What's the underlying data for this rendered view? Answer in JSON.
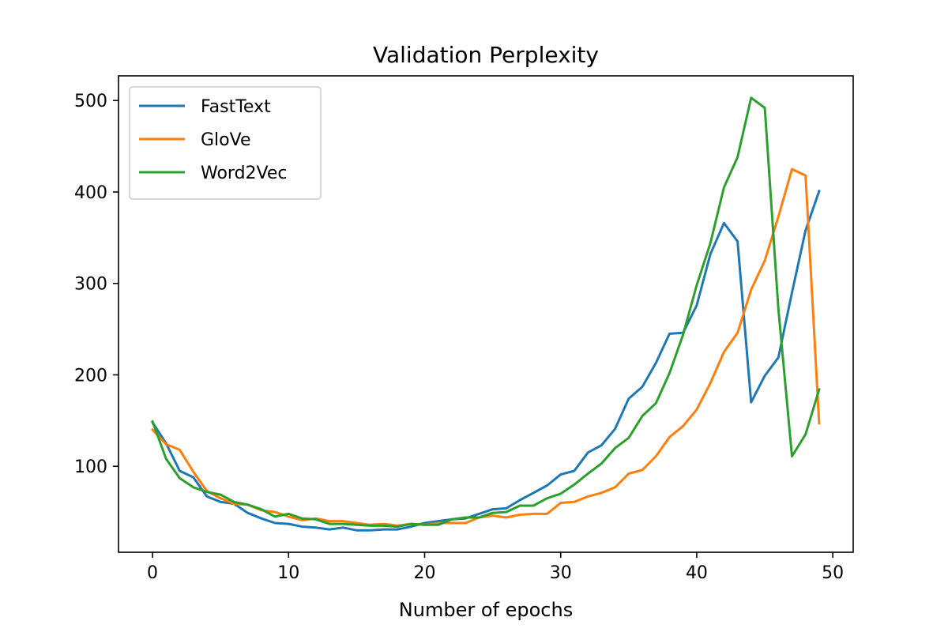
{
  "chart_data": {
    "type": "line",
    "title": "Validation Perplexity",
    "xlabel": "Number of epochs",
    "ylabel": "",
    "xlim": [
      -2.5,
      51.5
    ],
    "ylim": [
      6,
      527
    ],
    "xticks": [
      0,
      10,
      20,
      30,
      40,
      50
    ],
    "yticks": [
      100,
      200,
      300,
      400,
      500
    ],
    "grid": false,
    "legend_position": "top-left",
    "x": [
      0,
      1,
      2,
      3,
      4,
      5,
      6,
      7,
      8,
      9,
      10,
      11,
      12,
      13,
      14,
      15,
      16,
      17,
      18,
      19,
      20,
      21,
      22,
      23,
      24,
      25,
      26,
      27,
      28,
      29,
      30,
      31,
      32,
      33,
      34,
      35,
      36,
      37,
      38,
      39,
      40,
      41,
      42,
      43,
      44,
      45,
      46,
      47,
      48,
      49
    ],
    "series": [
      {
        "name": "FastText",
        "color": "#1f77b4",
        "values": [
          148,
          125,
          95,
          88,
          67,
          61,
          59,
          49,
          43,
          38,
          37,
          34,
          33,
          31,
          33,
          30,
          30,
          31,
          31,
          34,
          38,
          40,
          42,
          43,
          48,
          53,
          54,
          63,
          71,
          79,
          91,
          95,
          115,
          123,
          141,
          174,
          187,
          213,
          245,
          246,
          276,
          332,
          366,
          346,
          170,
          199,
          219,
          290,
          358,
          401
        ]
      },
      {
        "name": "GloVe",
        "color": "#ff7f0e",
        "values": [
          140,
          124,
          118,
          94,
          73,
          65,
          59,
          58,
          52,
          50,
          45,
          41,
          43,
          40,
          40,
          38,
          36,
          37,
          35,
          37,
          36,
          38,
          38,
          38,
          44,
          46,
          44,
          47,
          48,
          48,
          60,
          61,
          67,
          71,
          77,
          92,
          96,
          111,
          132,
          144,
          162,
          191,
          225,
          246,
          293,
          325,
          373,
          425,
          418,
          147
        ]
      },
      {
        "name": "Word2Vec",
        "color": "#2ca02c",
        "values": [
          149,
          108,
          87,
          77,
          72,
          69,
          61,
          58,
          53,
          45,
          48,
          43,
          42,
          37,
          37,
          36,
          35,
          35,
          34,
          37,
          36,
          36,
          42,
          44,
          44,
          49,
          50,
          57,
          57,
          65,
          70,
          80,
          92,
          103,
          120,
          131,
          155,
          169,
          202,
          244,
          298,
          344,
          405,
          438,
          503,
          492,
          272,
          111,
          135,
          184
        ]
      }
    ]
  }
}
